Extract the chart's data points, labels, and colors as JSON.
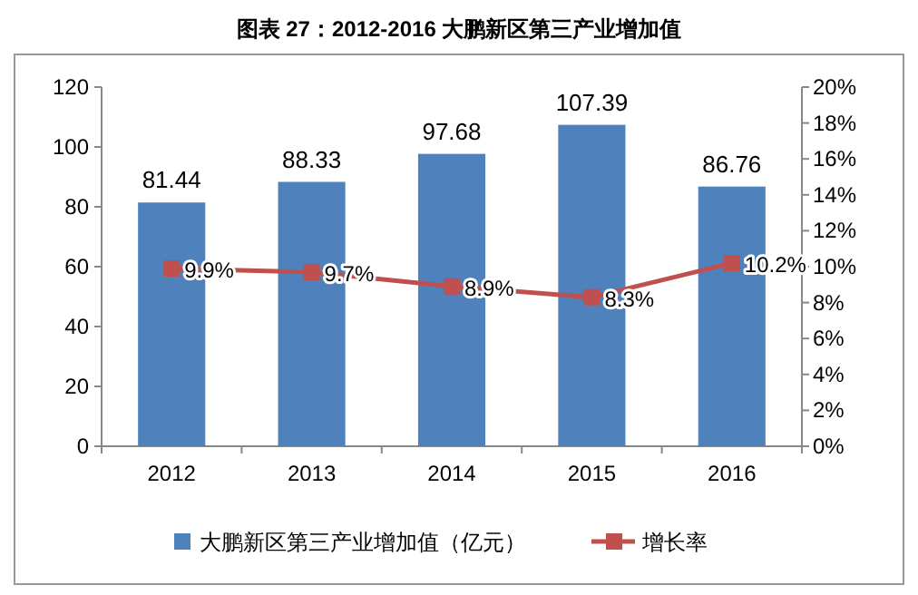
{
  "chart_data": {
    "type": "bar",
    "title": "图表 27：2012-2016 大鹏新区第三产业增加值",
    "categories": [
      "2012",
      "2013",
      "2014",
      "2015",
      "2016"
    ],
    "series": [
      {
        "name": "大鹏新区第三产业增加值（亿元）",
        "color": "#4f81bd",
        "values": [
          81.44,
          88.33,
          97.68,
          107.39,
          86.76
        ],
        "value_labels": [
          "81.44",
          "88.33",
          "97.68",
          "107.39",
          "86.76"
        ]
      },
      {
        "name": "增长率",
        "type": "line",
        "axis": "y2",
        "color": "#c0504d",
        "marker": "square",
        "values": [
          9.9,
          9.7,
          8.9,
          8.3,
          10.2
        ],
        "value_labels": [
          "9.9%",
          "9.7%",
          "8.9%",
          "8.3%",
          "10.2%"
        ]
      }
    ],
    "ylim": [
      0,
      120
    ],
    "yticks": [
      0,
      20,
      40,
      60,
      80,
      100,
      120
    ],
    "y2lim": [
      0,
      20
    ],
    "y2ticks": [
      {
        "value": 0,
        "label": "0%"
      },
      {
        "value": 2,
        "label": "2%"
      },
      {
        "value": 4,
        "label": "4%"
      },
      {
        "value": 6,
        "label": "6%"
      },
      {
        "value": 8,
        "label": "8%"
      },
      {
        "value": 10,
        "label": "10%"
      },
      {
        "value": 12,
        "label": "12%"
      },
      {
        "value": 14,
        "label": "14%"
      },
      {
        "value": 16,
        "label": "16%"
      },
      {
        "value": 18,
        "label": "18%"
      },
      {
        "value": 20,
        "label": "20%"
      }
    ],
    "grid": false,
    "legend": "bottom"
  }
}
